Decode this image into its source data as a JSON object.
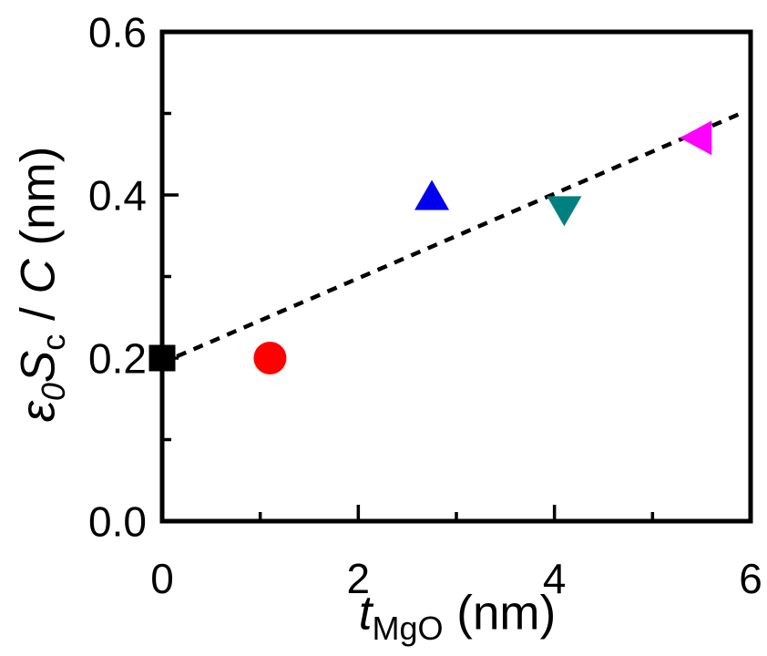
{
  "chart_data": {
    "type": "scatter",
    "title": "",
    "xlabel": "t_MgO (nm)",
    "ylabel": "ε0Sc / C (nm)",
    "xlabel_parts": {
      "symbol": "t",
      "sub": "MgO",
      "unit": " (nm)"
    },
    "ylabel_parts": {
      "epsilon": "ε",
      "epsilon_sub": "0",
      "S": "S",
      "S_sub": "c",
      "divide": " / ",
      "C": "C",
      "unit": " (nm)"
    },
    "xlim": [
      0,
      6
    ],
    "ylim": [
      0.0,
      0.6
    ],
    "x_major_ticks": [
      0,
      2,
      4,
      6
    ],
    "x_tick_labels": [
      "0",
      "2",
      "4",
      "6"
    ],
    "x_minor_ticks": [
      1,
      3,
      5
    ],
    "y_major_ticks": [
      0.0,
      0.2,
      0.4,
      0.6
    ],
    "y_tick_labels": [
      "0.0",
      "0.2",
      "0.4",
      "0.6"
    ],
    "y_minor_ticks": [
      0.1,
      0.3,
      0.5
    ],
    "grid": false,
    "legend": false,
    "axis_color": "#000000",
    "background_color": "#ffffff",
    "series": [
      {
        "marker": "square",
        "color": "#000000",
        "size": 29,
        "points": [
          [
            0.0,
            0.2
          ]
        ]
      },
      {
        "marker": "circle",
        "color": "#ff0000",
        "size": 36,
        "points": [
          [
            1.1,
            0.2
          ]
        ]
      },
      {
        "marker": "triangle-up",
        "color": "#0000ee",
        "size": 38,
        "points": [
          [
            2.75,
            0.4
          ]
        ]
      },
      {
        "marker": "triangle-down",
        "color": "#008080",
        "size": 38,
        "points": [
          [
            4.1,
            0.38
          ]
        ]
      },
      {
        "marker": "triangle-left",
        "color": "#ff00ff",
        "size": 38,
        "points": [
          [
            5.45,
            0.47
          ]
        ]
      }
    ],
    "trend_line": {
      "style": "dashed",
      "color": "#000000",
      "from": [
        0.15,
        0.202
      ],
      "to": [
        5.9,
        0.5
      ]
    }
  }
}
